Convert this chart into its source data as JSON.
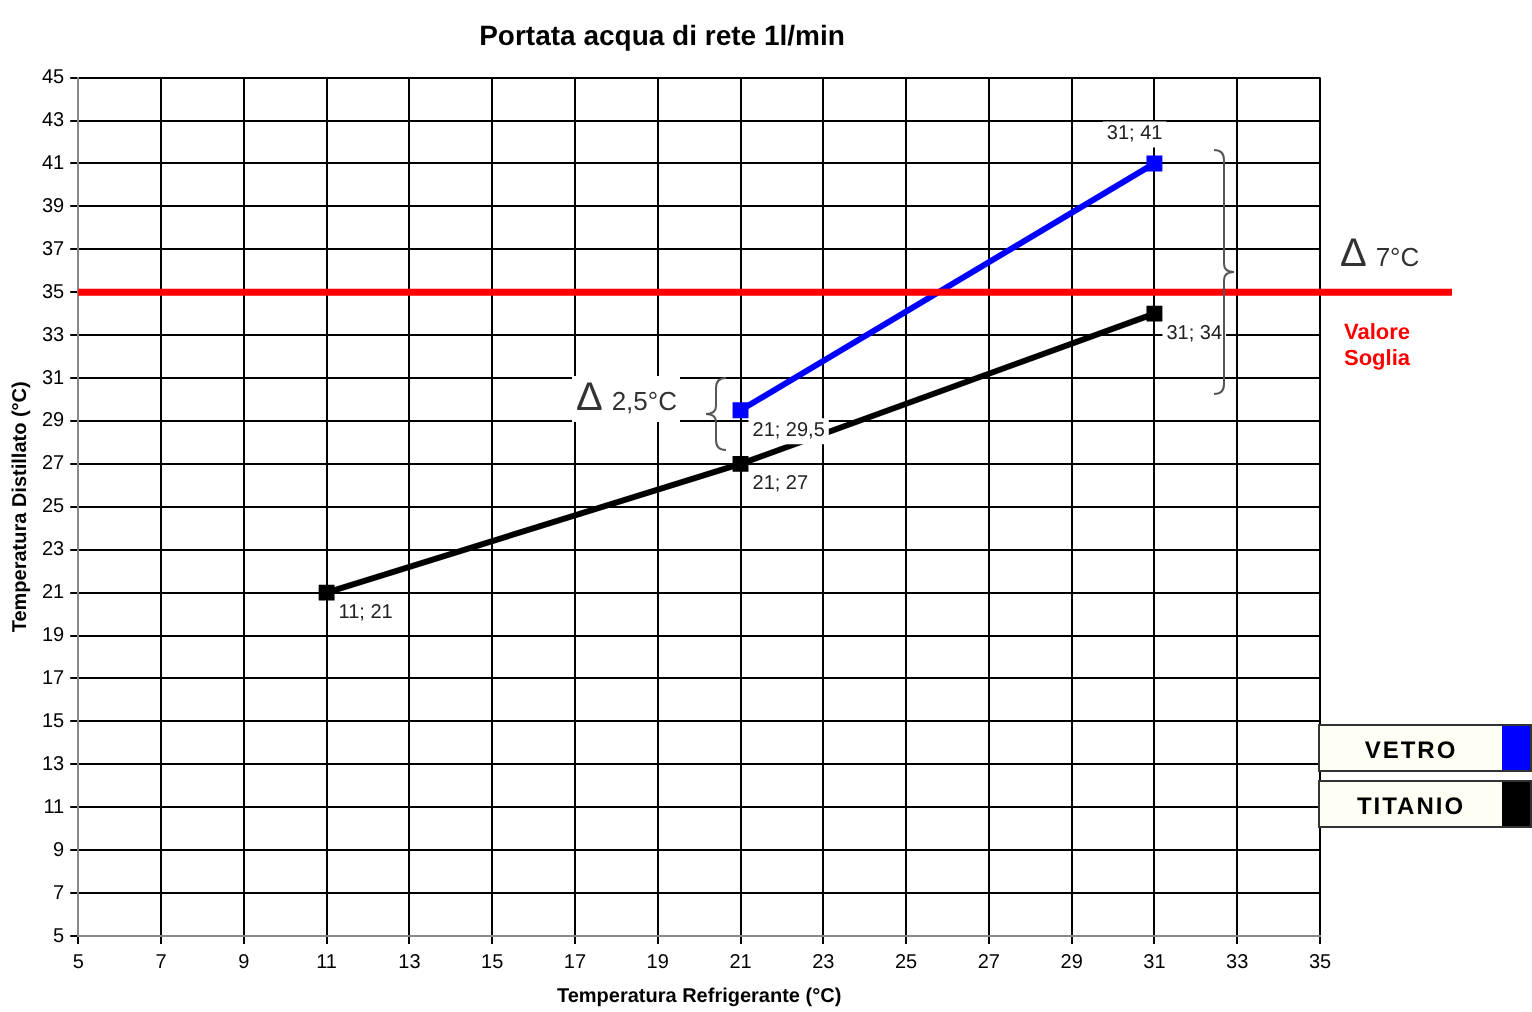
{
  "chart_data": {
    "type": "line",
    "title": "Portata acqua di rete 1l/min",
    "xlabel": "Temperatura Refrigerante (°C)",
    "ylabel": "Temperatura Distillato (°C)",
    "xlim": [
      5,
      35
    ],
    "xticks": [
      5,
      7,
      9,
      11,
      13,
      15,
      17,
      19,
      21,
      23,
      25,
      27,
      29,
      31,
      33,
      35
    ],
    "ylim": [
      5,
      45
    ],
    "yticks": [
      5,
      7,
      9,
      11,
      13,
      15,
      17,
      19,
      21,
      23,
      25,
      27,
      29,
      31,
      33,
      35,
      37,
      39,
      41,
      43,
      45
    ],
    "series": [
      {
        "name": "VETRO",
        "color": "#0000ff",
        "x": [
          21,
          31
        ],
        "values": [
          29.5,
          41
        ],
        "value_labels": [
          "21; 29,5",
          "31; 41"
        ]
      },
      {
        "name": "TITANIO",
        "color": "#000000",
        "x": [
          11,
          21,
          31
        ],
        "values": [
          21,
          27,
          34
        ],
        "value_labels": [
          "11; 21",
          "21; 27",
          "31; 34"
        ]
      }
    ],
    "ref_lines": [
      {
        "axis": "y",
        "value": 35,
        "label": "Valore Soglia",
        "color": "#ff0000"
      }
    ],
    "annotations": [
      "Δ 2,5°C",
      "Δ 7°C"
    ],
    "grid": true,
    "legend": "right",
    "marker": "square",
    "line_style": "solid"
  }
}
